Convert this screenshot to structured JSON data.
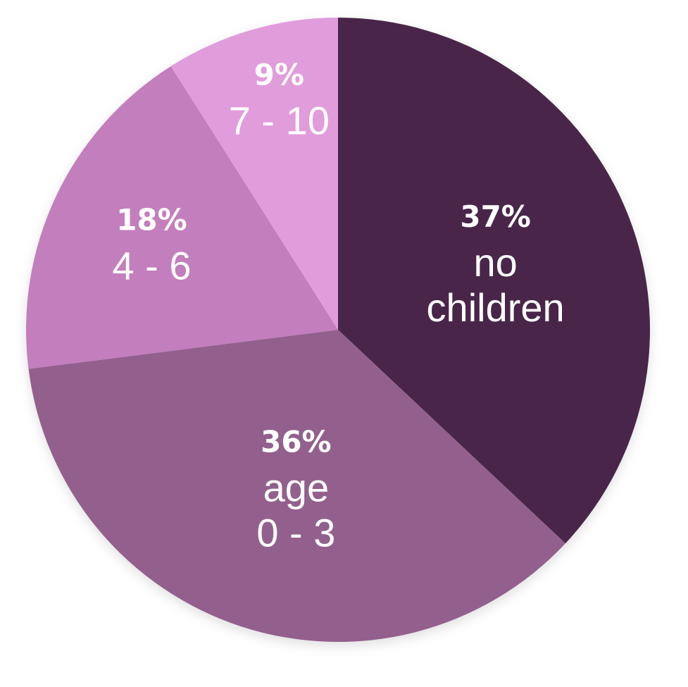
{
  "chart_data": {
    "type": "pie",
    "start_angle_deg": 0,
    "direction": "clockwise",
    "slices": [
      {
        "value": 37,
        "percent_label": "37%",
        "label_lines": [
          "no",
          "children"
        ],
        "color": "#4a2649"
      },
      {
        "value": 36,
        "percent_label": "36%",
        "label_lines": [
          "age",
          "0 - 3"
        ],
        "color": "#93608d"
      },
      {
        "value": 18,
        "percent_label": "18%",
        "label_lines": [
          "4 - 6"
        ],
        "color": "#c37ebd"
      },
      {
        "value": 9,
        "percent_label": "9%",
        "label_lines": [
          "7 - 10"
        ],
        "color": "#e19cdb"
      }
    ]
  }
}
